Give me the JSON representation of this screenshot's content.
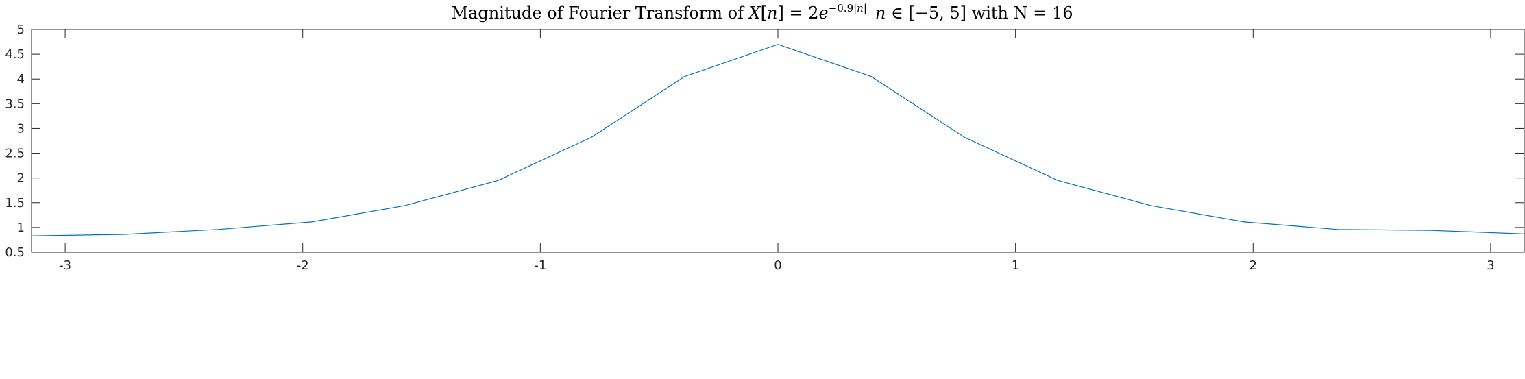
{
  "chart_data": {
    "type": "line",
    "title": {
      "prefix": "Magnitude of Fourier Transform of ",
      "math_lhs": "X",
      "math_bracket_open": "[",
      "math_n": "n",
      "math_bracket_close": "] = 2",
      "math_e": "e",
      "exponent": "−0.9|",
      "exponent_n": "n",
      "exponent_end": "|",
      "domain_n": "n",
      "domain_set": " ∈ [−5, 5]",
      "suffix": " with N =  16"
    },
    "xlim": [
      -3.1416,
      3.1416
    ],
    "ylim": [
      0.5,
      5
    ],
    "x_ticks": [
      -3,
      -2,
      -1,
      0,
      1,
      2,
      3
    ],
    "x_tick_labels": [
      "-3",
      "-2",
      "-1",
      "0",
      "1",
      "2",
      "3"
    ],
    "y_ticks": [
      0.5,
      1,
      1.5,
      2,
      2.5,
      3,
      3.5,
      4,
      4.5,
      5
    ],
    "y_tick_labels": [
      "0.5",
      "1",
      "1.5",
      "2",
      "2.5",
      "3",
      "3.5",
      "4",
      "4.5",
      "5"
    ],
    "grid": false,
    "series": [
      {
        "color": "#0072BD",
        "x": [
          -3.1416,
          -2.7489,
          -2.3562,
          -1.9635,
          -1.5708,
          -1.1781,
          -0.7854,
          -0.3927,
          0.0,
          0.3927,
          0.7854,
          1.1781,
          1.5708,
          1.9635,
          2.3562,
          2.7489,
          3.1416
        ],
        "y": [
          0.83,
          0.86,
          0.96,
          1.11,
          1.44,
          1.95,
          2.82,
          4.05,
          4.7,
          4.05,
          2.82,
          1.95,
          1.44,
          1.11,
          0.96,
          0.94,
          0.87
        ]
      }
    ]
  }
}
